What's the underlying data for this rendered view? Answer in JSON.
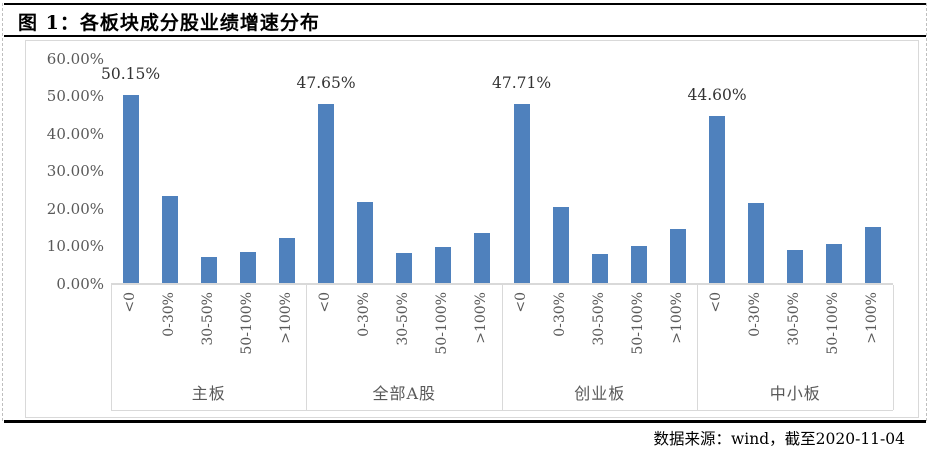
{
  "figure": {
    "title": "图 1：各板块成分股业绩增速分布",
    "source": "数据来源：wind，截至2020-11-04"
  },
  "chart_data": {
    "type": "bar",
    "title": "图 1：各板块成分股业绩增速分布",
    "categories": [
      "<0",
      "0-30%",
      "30-50%",
      "50-100%",
      ">100%"
    ],
    "series": [
      {
        "name": "主板",
        "values": [
          50.15,
          23.2,
          6.9,
          8.2,
          12.0
        ]
      },
      {
        "name": "全部A股",
        "values": [
          47.65,
          21.6,
          8.0,
          9.5,
          13.4
        ]
      },
      {
        "name": "创业板",
        "values": [
          47.71,
          20.3,
          7.7,
          9.9,
          14.4
        ]
      },
      {
        "name": "中小板",
        "values": [
          44.6,
          21.3,
          8.9,
          10.4,
          14.9
        ]
      }
    ],
    "data_labels_first_bar": [
      "50.15%",
      "47.65%",
      "47.71%",
      "44.60%"
    ],
    "y_ticks": [
      "60.00%",
      "50.00%",
      "40.00%",
      "30.00%",
      "20.00%",
      "10.00%",
      "0.00%"
    ],
    "y_tick_values": [
      60,
      50,
      40,
      30,
      20,
      10,
      0
    ],
    "ylim": [
      0,
      60
    ],
    "xlabel": "",
    "ylabel": "",
    "grid": false,
    "legend": false,
    "bar_color": "#4f81bd",
    "axis_color": "#d9d9d9",
    "label_color": "#595959"
  }
}
